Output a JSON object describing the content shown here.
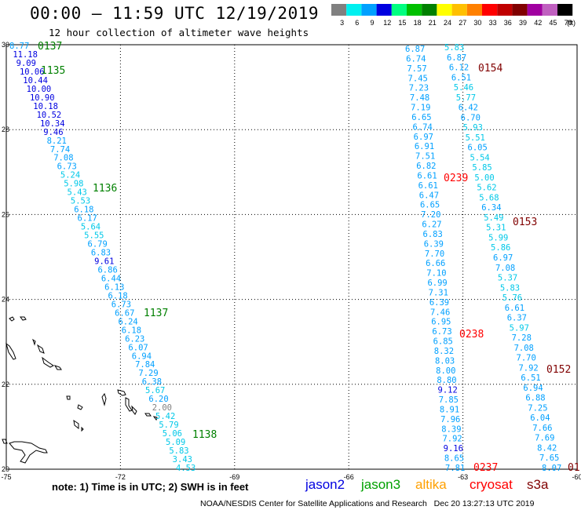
{
  "header": {
    "title": "00:00 – 11:59 UTC 12/19/2019",
    "subtitle": "12 hour collection of altimeter wave heights"
  },
  "legend": {
    "unit": "(ft)",
    "entries": [
      {
        "label": "3",
        "color": "#808080"
      },
      {
        "label": "6",
        "color": "#00f0f0"
      },
      {
        "label": "9",
        "color": "#00a0ff"
      },
      {
        "label": "12",
        "color": "#0000e0"
      },
      {
        "label": "15",
        "color": "#00ff80"
      },
      {
        "label": "18",
        "color": "#00c000"
      },
      {
        "label": "21",
        "color": "#008000"
      },
      {
        "label": "24",
        "color": "#ffff00"
      },
      {
        "label": "27",
        "color": "#ffc000"
      },
      {
        "label": "30",
        "color": "#ff8000"
      },
      {
        "label": "33",
        "color": "#ff0000"
      },
      {
        "label": "36",
        "color": "#c00000"
      },
      {
        "label": "39",
        "color": "#800000"
      },
      {
        "label": "42",
        "color": "#a000a0"
      },
      {
        "label": "45",
        "color": "#c060c0"
      },
      {
        "label": "70",
        "color": "#000000"
      }
    ]
  },
  "map": {
    "lon_range": [
      -75,
      -60
    ],
    "lat_range": [
      20,
      30
    ],
    "x_ticks": [
      "-75",
      "-72",
      "-69",
      "-66",
      "-63",
      "-60"
    ],
    "y_ticks": [
      "30",
      "28",
      "26",
      "24",
      "22",
      "20"
    ]
  },
  "colors": {
    "light": "#00c8e8",
    "mid": "#00a0ff",
    "dark": "#0000e0",
    "grey": "#808080",
    "pass_green": "#008000",
    "pass_red": "#ff0000",
    "pass_maroon": "#800000"
  },
  "tracks": {
    "west": [
      {
        "t": "8.77",
        "c": "mid"
      },
      {
        "t": "11.18",
        "c": "dark"
      },
      {
        "t": "9.09",
        "c": "dark"
      },
      {
        "t": "10.06",
        "c": "dark"
      },
      {
        "t": "10.44",
        "c": "dark"
      },
      {
        "t": "10.00",
        "c": "dark"
      },
      {
        "t": "10.90",
        "c": "dark"
      },
      {
        "t": "10.18",
        "c": "dark"
      },
      {
        "t": "10.52",
        "c": "dark"
      },
      {
        "t": "10.34",
        "c": "dark"
      },
      {
        "t": "9.46",
        "c": "dark"
      },
      {
        "t": "8.21",
        "c": "mid"
      },
      {
        "t": "7.74",
        "c": "mid"
      },
      {
        "t": "7.08",
        "c": "mid"
      },
      {
        "t": "6.73",
        "c": "mid"
      },
      {
        "t": "5.24",
        "c": "light"
      },
      {
        "t": "5.98",
        "c": "light"
      },
      {
        "t": "5.43",
        "c": "light"
      },
      {
        "t": "5.53",
        "c": "light"
      },
      {
        "t": "6.18",
        "c": "mid"
      },
      {
        "t": "6.17",
        "c": "mid"
      },
      {
        "t": "5.64",
        "c": "light"
      },
      {
        "t": "5.55",
        "c": "light"
      },
      {
        "t": "6.79",
        "c": "mid"
      },
      {
        "t": "6.83",
        "c": "mid"
      },
      {
        "t": "9.61",
        "c": "dark"
      },
      {
        "t": "6.86",
        "c": "mid"
      },
      {
        "t": "6.44",
        "c": "mid"
      },
      {
        "t": "6.13",
        "c": "mid"
      },
      {
        "t": "6.18",
        "c": "mid"
      },
      {
        "t": "6.73",
        "c": "mid"
      },
      {
        "t": "6.67",
        "c": "mid"
      },
      {
        "t": "6.24",
        "c": "mid"
      },
      {
        "t": "6.18",
        "c": "mid"
      },
      {
        "t": "6.23",
        "c": "mid"
      },
      {
        "t": "6.07",
        "c": "mid"
      },
      {
        "t": "6.94",
        "c": "mid"
      },
      {
        "t": "7.84",
        "c": "mid"
      },
      {
        "t": "7.29",
        "c": "mid"
      },
      {
        "t": "6.38",
        "c": "mid"
      },
      {
        "t": "5.67",
        "c": "light"
      },
      {
        "t": "6.20",
        "c": "mid"
      },
      {
        "t": "2.00",
        "c": "grey"
      },
      {
        "t": "5.42",
        "c": "light"
      },
      {
        "t": "5.79",
        "c": "light"
      },
      {
        "t": "5.06",
        "c": "light"
      },
      {
        "t": "5.09",
        "c": "light"
      },
      {
        "t": "5.83",
        "c": "light"
      },
      {
        "t": "3.43",
        "c": "light"
      },
      {
        "t": "4.53",
        "c": "light"
      }
    ],
    "east1": [
      {
        "t": "6.87",
        "c": "mid"
      },
      {
        "t": "6.74",
        "c": "mid"
      },
      {
        "t": "7.57",
        "c": "mid"
      },
      {
        "t": "7.45",
        "c": "mid"
      },
      {
        "t": "7.23",
        "c": "mid"
      },
      {
        "t": "7.48",
        "c": "mid"
      },
      {
        "t": "7.19",
        "c": "mid"
      },
      {
        "t": "6.65",
        "c": "mid"
      },
      {
        "t": "6.74",
        "c": "mid"
      },
      {
        "t": "6.97",
        "c": "mid"
      },
      {
        "t": "6.91",
        "c": "mid"
      },
      {
        "t": "7.51",
        "c": "mid"
      },
      {
        "t": "6.82",
        "c": "mid"
      },
      {
        "t": "6.61",
        "c": "mid"
      },
      {
        "t": "6.61",
        "c": "mid"
      },
      {
        "t": "6.47",
        "c": "mid"
      },
      {
        "t": "6.65",
        "c": "mid"
      },
      {
        "t": "7.20",
        "c": "mid"
      },
      {
        "t": "6.27",
        "c": "mid"
      },
      {
        "t": "6.83",
        "c": "mid"
      },
      {
        "t": "6.39",
        "c": "mid"
      },
      {
        "t": "7.70",
        "c": "mid"
      },
      {
        "t": "6.66",
        "c": "mid"
      },
      {
        "t": "7.10",
        "c": "mid"
      },
      {
        "t": "6.99",
        "c": "mid"
      },
      {
        "t": "7.31",
        "c": "mid"
      },
      {
        "t": "6.39",
        "c": "mid"
      },
      {
        "t": "7.46",
        "c": "mid"
      },
      {
        "t": "6.95",
        "c": "mid"
      },
      {
        "t": "6.73",
        "c": "mid"
      },
      {
        "t": "6.85",
        "c": "mid"
      },
      {
        "t": "8.32",
        "c": "mid"
      },
      {
        "t": "8.03",
        "c": "mid"
      },
      {
        "t": "8.00",
        "c": "mid"
      },
      {
        "t": "8.80",
        "c": "mid"
      },
      {
        "t": "9.12",
        "c": "dark"
      },
      {
        "t": "7.85",
        "c": "mid"
      },
      {
        "t": "8.91",
        "c": "mid"
      },
      {
        "t": "7.96",
        "c": "mid"
      },
      {
        "t": "8.39",
        "c": "mid"
      },
      {
        "t": "7.92",
        "c": "mid"
      },
      {
        "t": "9.16",
        "c": "dark"
      },
      {
        "t": "8.65",
        "c": "mid"
      },
      {
        "t": "7.81",
        "c": "mid"
      }
    ],
    "east2": [
      {
        "t": "5.83",
        "c": "light"
      },
      {
        "t": "6.87",
        "c": "mid"
      },
      {
        "t": "6.12",
        "c": "mid"
      },
      {
        "t": "6.51",
        "c": "mid"
      },
      {
        "t": "5.46",
        "c": "light"
      },
      {
        "t": "5.77",
        "c": "light"
      },
      {
        "t": "6.42",
        "c": "mid"
      },
      {
        "t": "6.70",
        "c": "mid"
      },
      {
        "t": "5.93",
        "c": "light"
      },
      {
        "t": "5.51",
        "c": "light"
      },
      {
        "t": "6.05",
        "c": "mid"
      },
      {
        "t": "5.54",
        "c": "light"
      },
      {
        "t": "5.85",
        "c": "light"
      },
      {
        "t": "5.00",
        "c": "light"
      },
      {
        "t": "5.62",
        "c": "light"
      },
      {
        "t": "5.68",
        "c": "light"
      },
      {
        "t": "6.34",
        "c": "mid"
      },
      {
        "t": "5.49",
        "c": "light"
      },
      {
        "t": "5.31",
        "c": "light"
      },
      {
        "t": "5.99",
        "c": "light"
      },
      {
        "t": "5.86",
        "c": "light"
      },
      {
        "t": "6.97",
        "c": "mid"
      },
      {
        "t": "7.08",
        "c": "mid"
      },
      {
        "t": "5.37",
        "c": "light"
      },
      {
        "t": "5.83",
        "c": "light"
      },
      {
        "t": "5.76",
        "c": "light"
      },
      {
        "t": "6.61",
        "c": "mid"
      },
      {
        "t": "6.37",
        "c": "mid"
      },
      {
        "t": "5.97",
        "c": "light"
      },
      {
        "t": "7.28",
        "c": "mid"
      },
      {
        "t": "7.08",
        "c": "mid"
      },
      {
        "t": "7.70",
        "c": "mid"
      },
      {
        "t": "7.92",
        "c": "mid"
      },
      {
        "t": "6.51",
        "c": "mid"
      },
      {
        "t": "6.94",
        "c": "mid"
      },
      {
        "t": "6.88",
        "c": "mid"
      },
      {
        "t": "7.25",
        "c": "mid"
      },
      {
        "t": "6.04",
        "c": "mid"
      },
      {
        "t": "7.66",
        "c": "mid"
      },
      {
        "t": "7.69",
        "c": "mid"
      },
      {
        "t": "8.42",
        "c": "mid"
      },
      {
        "t": "7.65",
        "c": "mid"
      },
      {
        "t": "8.07",
        "c": "mid"
      }
    ]
  },
  "pass_labels": [
    {
      "t": "0137",
      "c": "pass_green"
    },
    {
      "t": "1135",
      "c": "pass_green"
    },
    {
      "t": "1136",
      "c": "pass_green"
    },
    {
      "t": "1137",
      "c": "pass_green"
    },
    {
      "t": "1138",
      "c": "pass_green"
    },
    {
      "t": "0154",
      "c": "pass_maroon"
    },
    {
      "t": "0239",
      "c": "pass_red"
    },
    {
      "t": "0153",
      "c": "pass_maroon"
    },
    {
      "t": "0238",
      "c": "pass_red"
    },
    {
      "t": "0152",
      "c": "pass_maroon"
    },
    {
      "t": "0237",
      "c": "pass_red"
    },
    {
      "t": "01",
      "c": "pass_maroon"
    }
  ],
  "note": "note: 1) Time is in UTC; 2) SWH is in feet",
  "satellites": [
    {
      "name": "jason2",
      "color": "#0000e0"
    },
    {
      "name": "jason3",
      "color": "#00a000"
    },
    {
      "name": "altika",
      "color": "#ffa000"
    },
    {
      "name": "cryosat",
      "color": "#ff0000"
    },
    {
      "name": "s3a",
      "color": "#800000"
    }
  ],
  "footer": {
    "org": "NOAA/NESDIS Center for Satellite Applications and Research",
    "timestamp": "Dec 20 13:27:13 UTC 2019"
  }
}
